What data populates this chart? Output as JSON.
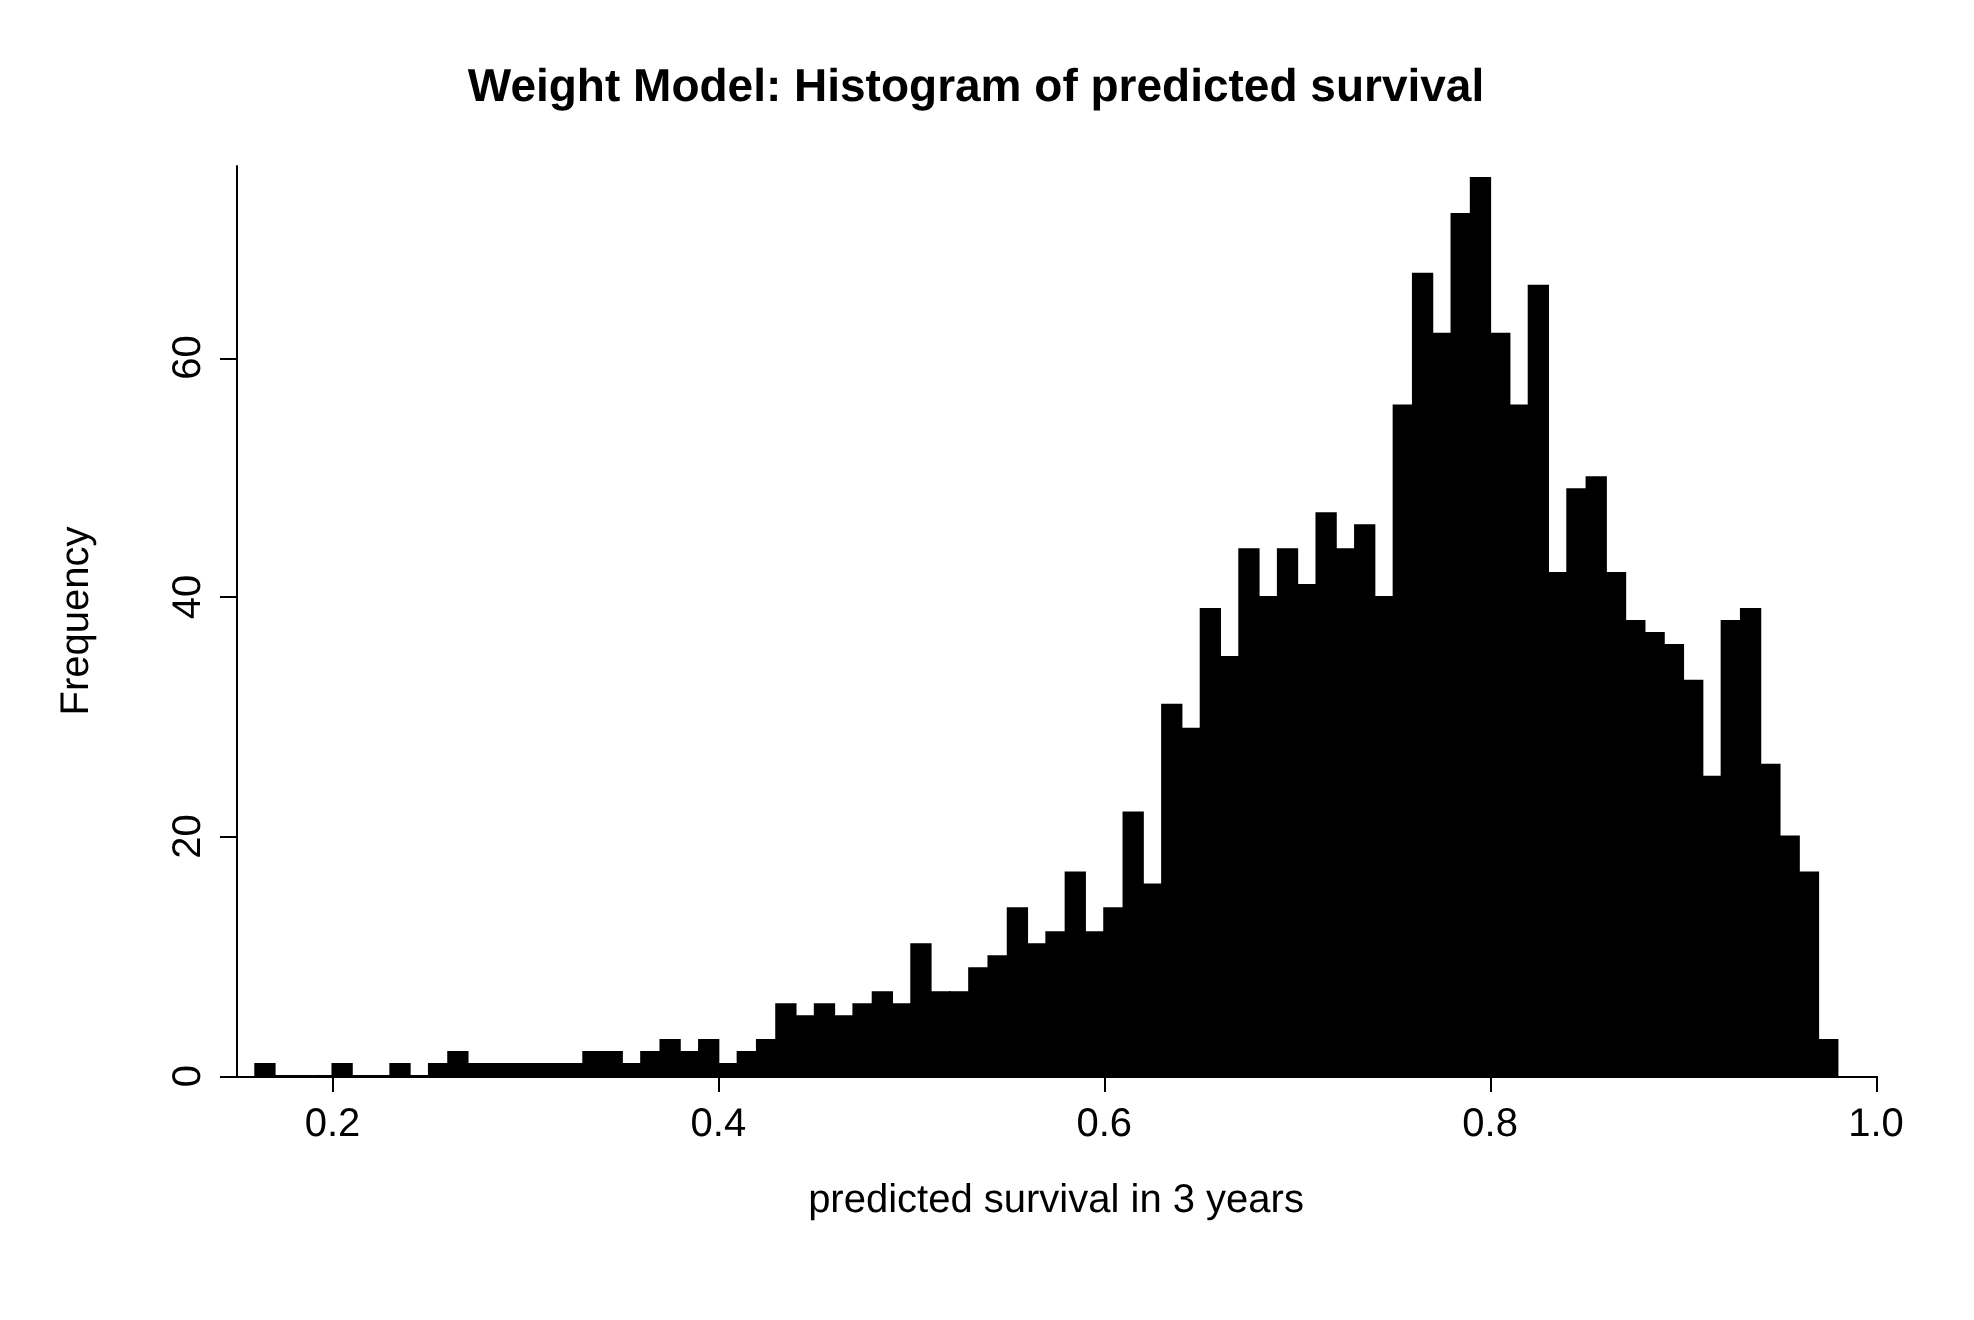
{
  "chart_data": {
    "type": "histogram",
    "title": "Weight Model: Histogram of predicted survival",
    "xlabel": "predicted survival in 3 years",
    "ylabel": "Frequency",
    "bins": [
      0.16,
      0.17,
      0.18,
      0.19,
      0.2,
      0.21,
      0.22,
      0.23,
      0.24,
      0.25,
      0.26,
      0.27,
      0.28,
      0.29,
      0.3,
      0.31,
      0.32,
      0.33,
      0.34,
      0.35,
      0.36,
      0.37,
      0.38,
      0.39,
      0.4,
      0.41,
      0.42,
      0.43,
      0.44,
      0.45,
      0.46,
      0.47,
      0.48,
      0.49,
      0.5,
      0.51,
      0.52,
      0.53,
      0.54,
      0.55,
      0.56,
      0.57,
      0.58,
      0.59,
      0.6,
      0.61,
      0.62,
      0.63,
      0.64,
      0.65,
      0.66,
      0.67,
      0.68,
      0.69,
      0.7,
      0.71,
      0.72,
      0.73,
      0.74,
      0.75,
      0.76,
      0.77,
      0.78,
      0.79,
      0.8,
      0.81,
      0.82,
      0.83,
      0.84,
      0.85,
      0.86,
      0.87,
      0.88,
      0.89,
      0.9,
      0.91,
      0.92,
      0.93,
      0.94,
      0.95,
      0.96,
      0.97,
      0.98
    ],
    "values": [
      1,
      0,
      0,
      0,
      1,
      0,
      0,
      1,
      0,
      1,
      2,
      1,
      1,
      1,
      1,
      1,
      1,
      2,
      2,
      1,
      2,
      3,
      2,
      3,
      1,
      2,
      3,
      6,
      5,
      6,
      5,
      6,
      7,
      6,
      11,
      7,
      7,
      9,
      10,
      14,
      11,
      12,
      17,
      12,
      14,
      22,
      16,
      31,
      29,
      39,
      35,
      44,
      40,
      44,
      41,
      47,
      44,
      46,
      40,
      56,
      67,
      62,
      72,
      75,
      62,
      56,
      66,
      42,
      49,
      50,
      42,
      38,
      37,
      36,
      33,
      25,
      38,
      39,
      26,
      20,
      17,
      3
    ],
    "color": "#000000",
    "xlim": [
      0.15,
      1.0
    ],
    "xticks": [
      0.2,
      0.4,
      0.6,
      0.8,
      {
        "value": 1.0,
        "label": "1.0"
      }
    ],
    "ylim": [
      0,
      76
    ],
    "yticks": [
      0,
      20,
      40,
      60
    ],
    "grid": false
  }
}
